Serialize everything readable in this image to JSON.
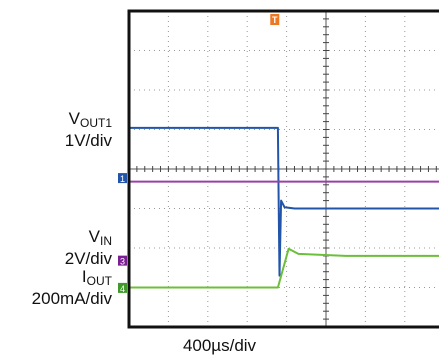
{
  "chart_data": {
    "type": "line",
    "grid": true,
    "x_scale_label": "400µs/div",
    "x_divisions": 10,
    "y_divisions": 8,
    "channels": [
      {
        "id": "1",
        "name_main": "V",
        "name_sub": "OUT1",
        "scale": "1V/div",
        "color": "#2255aa",
        "marker_color": "#2255aa",
        "ground_div": 3.77,
        "points": [
          [
            0,
            5.04
          ],
          [
            3.78,
            5.04
          ],
          [
            3.8,
            3.1
          ],
          [
            3.82,
            1.3
          ],
          [
            3.86,
            3.2
          ],
          [
            3.95,
            3.03
          ],
          [
            4.2,
            3.0
          ],
          [
            10,
            3.0
          ]
        ]
      },
      {
        "id": "3",
        "name_main": "V",
        "name_sub": "IN",
        "scale": "2V/div",
        "color": "#9b3fa8",
        "marker_color": "#7a1f93",
        "ground_div": 1.68,
        "points": [
          [
            0,
            3.68
          ],
          [
            10,
            3.68
          ]
        ]
      },
      {
        "id": "4",
        "name_main": "I",
        "name_sub": "OUT",
        "scale": "200mA/div",
        "color": "#6cbf3a",
        "marker_color": "#3f9a2a",
        "ground_div": 0.99,
        "points": [
          [
            0,
            1.0
          ],
          [
            3.78,
            1.0
          ],
          [
            4.05,
            1.98
          ],
          [
            4.3,
            1.85
          ],
          [
            5.5,
            1.8
          ],
          [
            10,
            1.8
          ]
        ]
      }
    ],
    "trigger_marker": {
      "label": "T",
      "color": "#ee7722",
      "position_div": 3.7
    }
  }
}
